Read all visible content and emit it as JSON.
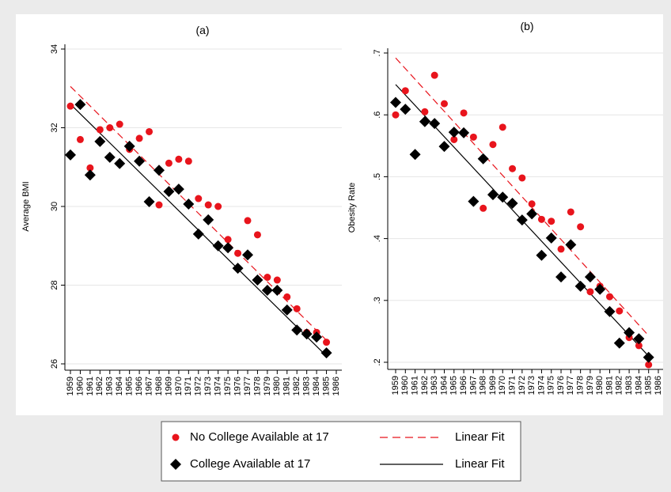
{
  "chart_data": [
    {
      "type": "scatter",
      "title": "(a)",
      "y_label": "Average BMI",
      "categories": [
        "1959",
        "1960",
        "1961",
        "1962",
        "1963",
        "1964",
        "1965",
        "1966",
        "1967",
        "1968",
        "1969",
        "1970",
        "1971",
        "1972",
        "1973",
        "1974",
        "1975",
        "1976",
        "1977",
        "1978",
        "1979",
        "1980",
        "1981",
        "1982",
        "1983",
        "1984",
        "1985",
        "1986"
      ],
      "ylim": [
        26,
        34
      ],
      "yticks": [
        26,
        28,
        30,
        32,
        34
      ],
      "grid": true,
      "series": [
        {
          "name": "No College Available at 17",
          "color": "#e8141c",
          "marker": "circle",
          "values": [
            32.55,
            31.7,
            30.98,
            31.95,
            32.0,
            32.09,
            31.45,
            31.73,
            31.9,
            30.04,
            31.1,
            31.2,
            31.15,
            30.2,
            30.04,
            30.0,
            29.16,
            28.81,
            29.64,
            29.28,
            28.2,
            28.13,
            27.7,
            27.4,
            26.8,
            26.8,
            26.55,
            null
          ]
        },
        {
          "name": "Linear Fit",
          "color": "#e8141c",
          "line": "dashed",
          "x": [
            1959,
            1985
          ],
          "values": [
            33.05,
            26.6
          ]
        },
        {
          "name": "College Available at 17",
          "color": "#000000",
          "marker": "diamond",
          "values": [
            31.31,
            32.59,
            30.8,
            31.65,
            31.25,
            31.09,
            31.53,
            31.15,
            30.12,
            30.92,
            30.38,
            30.44,
            30.06,
            29.3,
            29.66,
            29.0,
            28.95,
            28.43,
            28.77,
            28.13,
            27.87,
            27.87,
            27.37,
            26.86,
            26.76,
            26.68,
            26.28,
            null
          ]
        },
        {
          "name": "Linear Fit",
          "color": "#000000",
          "line": "solid",
          "x": [
            1959,
            1985
          ],
          "values": [
            32.6,
            26.2
          ]
        }
      ]
    },
    {
      "type": "scatter",
      "title": "(b)",
      "y_label": "Obesity Rate",
      "categories": [
        "1959",
        "1960",
        "1961",
        "1962",
        "1963",
        "1964",
        "1965",
        "1966",
        "1967",
        "1968",
        "1969",
        "1970",
        "1971",
        "1972",
        "1973",
        "1974",
        "1975",
        "1976",
        "1977",
        "1978",
        "1979",
        "1980",
        "1981",
        "1982",
        "1983",
        "1984",
        "1985",
        "1986"
      ],
      "ylim": [
        0.2,
        0.7
      ],
      "yticks": [
        {
          "value": 0.2,
          "label": ".2"
        },
        {
          "value": 0.3,
          "label": ".3"
        },
        {
          "value": 0.4,
          "label": ".4"
        },
        {
          "value": 0.5,
          "label": ".5"
        },
        {
          "value": 0.6,
          "label": ".6"
        },
        {
          "value": 0.7,
          "label": ".7"
        }
      ],
      "grid": true,
      "series": [
        {
          "color": "#e8141c",
          "marker": "circle",
          "values": [
            0.6,
            0.639,
            null,
            0.605,
            0.664,
            0.618,
            0.56,
            0.603,
            0.564,
            0.449,
            0.552,
            0.58,
            0.513,
            0.498,
            0.456,
            0.431,
            0.428,
            0.383,
            0.443,
            0.419,
            0.314,
            0.323,
            0.306,
            0.283,
            0.24,
            0.227,
            0.196,
            null
          ]
        },
        {
          "color": "#e8141c",
          "line": "dashed",
          "x": [
            1959,
            1985
          ],
          "values": [
            0.692,
            0.243
          ]
        },
        {
          "color": "#000000",
          "marker": "diamond",
          "values": [
            0.62,
            0.609,
            0.536,
            0.589,
            0.586,
            0.549,
            0.572,
            0.571,
            0.46,
            0.529,
            0.471,
            0.467,
            0.457,
            0.43,
            0.44,
            0.373,
            0.401,
            0.338,
            0.39,
            0.323,
            0.338,
            0.318,
            0.282,
            0.231,
            0.248,
            0.238,
            0.208,
            null
          ]
        },
        {
          "color": "#000000",
          "line": "solid",
          "x": [
            1959,
            1985
          ],
          "values": [
            0.649,
            0.21
          ]
        }
      ]
    }
  ]
}
